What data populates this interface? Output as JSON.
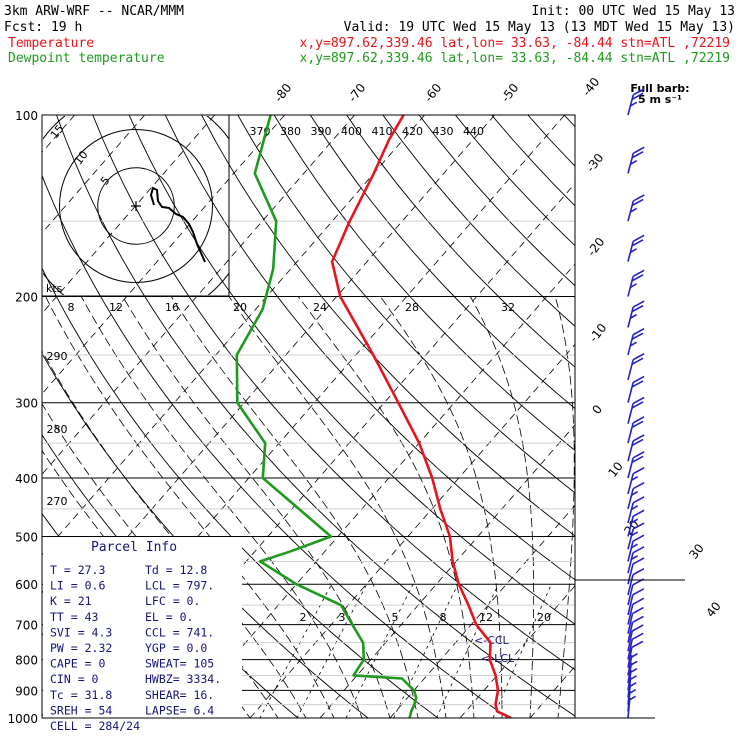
{
  "header": {
    "model": "3km ARW-WRF -- NCAR/MMM",
    "init": "Init: 00 UTC Wed 15 May 13",
    "fcst": "Fcst:   19 h",
    "valid": "Valid: 19 UTC Wed 15 May 13 (13 MDT Wed 15 May 13)",
    "temp_label": "Temperature",
    "dew_label": "Dewpoint temperature",
    "loc_line": "x,y=897.62,339.46   lat,lon= 33.63, -84.44   stn=ATL ,72219",
    "temp_color": "#e8141b",
    "dew_color": "#1f9a1f"
  },
  "barb_legend": {
    "line1": "Full barb:",
    "line2": "5 m s⁻¹"
  },
  "hodograph": {
    "label": "kts",
    "ring_labels": [
      "5",
      "10",
      "15"
    ]
  },
  "parcel_info": {
    "title": "Parcel Info",
    "rows": [
      [
        "T  =   27.3",
        "Td =  12.8"
      ],
      [
        "LI =    0.6",
        "LCL =  797."
      ],
      [
        "K  =     21",
        "LFC =    0."
      ],
      [
        "TT =     43",
        "EL  =    0."
      ],
      [
        "SVI =   4.3",
        "CCL =  741."
      ],
      [
        "PW =   2.32",
        "YGP =   0.0"
      ],
      [
        "CAPE =    0",
        "SWEAT=  105"
      ],
      [
        "CIN  =    0",
        "HWBZ= 3334."
      ],
      [
        "Tc  =  31.8",
        "SHEAR=  16."
      ],
      [
        "SREH =   54",
        "LAPSE=  6.4"
      ],
      [
        "CELL = 284/24",
        ""
      ]
    ]
  },
  "chart_data": {
    "type": "line",
    "pressure_levels": [
      100,
      200,
      300,
      400,
      500,
      600,
      700,
      800,
      900,
      1000
    ],
    "ylim": [
      1000,
      100
    ],
    "temperature_ticks": [
      -40,
      -30,
      -20,
      -10,
      0,
      10,
      20,
      30,
      40
    ],
    "top_temperature_ticks": [
      -80,
      -70,
      -60,
      -50,
      -40
    ],
    "mixing_ratio_ticks": [
      "2",
      "3",
      "5",
      "8",
      "12",
      "20"
    ],
    "theta_ticks": [
      "370",
      "380",
      "390",
      "400",
      "410",
      "420",
      "430",
      "440"
    ],
    "wetbulb_ticks": [
      "8",
      "12",
      "16",
      "20",
      "24",
      "28",
      "32"
    ],
    "theta_left_ticks": [
      "290",
      "280",
      "270"
    ],
    "ccl_label": "<-CCL",
    "lcl_label": "<-LCL",
    "series": [
      {
        "name": "Temperature",
        "color": "#e8141b",
        "points": [
          [
            1000,
            27.3
          ],
          [
            975,
            24.5
          ],
          [
            950,
            23.4
          ],
          [
            925,
            22.7
          ],
          [
            900,
            22.0
          ],
          [
            850,
            19.8
          ],
          [
            800,
            17.0
          ],
          [
            750,
            15.0
          ],
          [
            700,
            10.7
          ],
          [
            650,
            7.2
          ],
          [
            600,
            3.2
          ],
          [
            550,
            -0.5
          ],
          [
            500,
            -4.0
          ],
          [
            450,
            -8.8
          ],
          [
            400,
            -13.8
          ],
          [
            350,
            -20.0
          ],
          [
            300,
            -28.0
          ],
          [
            250,
            -37.5
          ],
          [
            200,
            -49.5
          ],
          [
            175,
            -55.0
          ],
          [
            150,
            -57.5
          ],
          [
            125,
            -60.0
          ],
          [
            110,
            -62.0
          ],
          [
            100,
            -63.0
          ]
        ]
      },
      {
        "name": "Dewpoint temperature",
        "color": "#1f9a1f",
        "points": [
          [
            1000,
            12.8
          ],
          [
            975,
            12.2
          ],
          [
            950,
            11.8
          ],
          [
            925,
            11.2
          ],
          [
            900,
            10.0
          ],
          [
            860,
            6.8
          ],
          [
            850,
            -0.5
          ],
          [
            800,
            -1.0
          ],
          [
            750,
            -3.2
          ],
          [
            700,
            -7.0
          ],
          [
            650,
            -11.0
          ],
          [
            600,
            -20.0
          ],
          [
            550,
            -28.0
          ],
          [
            530,
            -25.0
          ],
          [
            500,
            -21.0
          ],
          [
            450,
            -29.0
          ],
          [
            400,
            -38.0
          ],
          [
            350,
            -42.0
          ],
          [
            300,
            -51.0
          ],
          [
            250,
            -57.0
          ],
          [
            210,
            -59.0
          ],
          [
            180,
            -62.5
          ],
          [
            150,
            -68.0
          ],
          [
            125,
            -77.0
          ],
          [
            100,
            -82.0
          ]
        ]
      }
    ],
    "hodograph_points": [
      [
        0.0,
        27.0
      ],
      [
        -1.2,
        34.0
      ],
      [
        -2.2,
        40.0
      ],
      [
        -3.4,
        41.5
      ],
      [
        -4.6,
        39.0
      ],
      [
        -5.8,
        34.0
      ],
      [
        -6.5,
        31.0
      ],
      [
        -8.5,
        27.5
      ],
      [
        -12.0,
        25.0
      ],
      [
        -14.5,
        22.0
      ],
      [
        -16.5,
        15.0
      ],
      [
        -19.0,
        9.0
      ],
      [
        -22.0,
        2.0
      ],
      [
        -25.5,
        -5.0
      ]
    ],
    "wind_barbs": [
      {
        "p": 100,
        "spd": 24,
        "dir": 255
      },
      {
        "p": 125,
        "spd": 24,
        "dir": 255
      },
      {
        "p": 150,
        "spd": 24,
        "dir": 255
      },
      {
        "p": 175,
        "spd": 25,
        "dir": 250
      },
      {
        "p": 200,
        "spd": 24,
        "dir": 250
      },
      {
        "p": 225,
        "spd": 24,
        "dir": 250
      },
      {
        "p": 250,
        "spd": 23,
        "dir": 250
      },
      {
        "p": 275,
        "spd": 22,
        "dir": 250
      },
      {
        "p": 300,
        "spd": 21,
        "dir": 250
      },
      {
        "p": 325,
        "spd": 20,
        "dir": 250
      },
      {
        "p": 350,
        "spd": 19,
        "dir": 250
      },
      {
        "p": 375,
        "spd": 18,
        "dir": 250
      },
      {
        "p": 400,
        "spd": 18,
        "dir": 250
      },
      {
        "p": 425,
        "spd": 17,
        "dir": 250
      },
      {
        "p": 450,
        "spd": 16,
        "dir": 250
      },
      {
        "p": 475,
        "spd": 15,
        "dir": 250
      },
      {
        "p": 500,
        "spd": 14,
        "dir": 250
      },
      {
        "p": 525,
        "spd": 14,
        "dir": 250
      },
      {
        "p": 550,
        "spd": 13,
        "dir": 245
      },
      {
        "p": 575,
        "spd": 13,
        "dir": 245
      },
      {
        "p": 600,
        "spd": 12,
        "dir": 245
      },
      {
        "p": 625,
        "spd": 11,
        "dir": 245
      },
      {
        "p": 650,
        "spd": 11,
        "dir": 240
      },
      {
        "p": 675,
        "spd": 10,
        "dir": 240
      },
      {
        "p": 700,
        "spd": 10,
        "dir": 240
      },
      {
        "p": 725,
        "spd": 9,
        "dir": 235
      },
      {
        "p": 750,
        "spd": 9,
        "dir": 235
      },
      {
        "p": 775,
        "spd": 8,
        "dir": 230
      },
      {
        "p": 800,
        "spd": 8,
        "dir": 230
      },
      {
        "p": 825,
        "spd": 8,
        "dir": 225
      },
      {
        "p": 850,
        "spd": 7,
        "dir": 225
      },
      {
        "p": 875,
        "spd": 7,
        "dir": 220
      },
      {
        "p": 900,
        "spd": 6,
        "dir": 215
      },
      {
        "p": 925,
        "spd": 6,
        "dir": 210
      },
      {
        "p": 950,
        "spd": 5,
        "dir": 205
      },
      {
        "p": 975,
        "spd": 5,
        "dir": 200
      },
      {
        "p": 1000,
        "spd": 4,
        "dir": 200
      }
    ]
  }
}
